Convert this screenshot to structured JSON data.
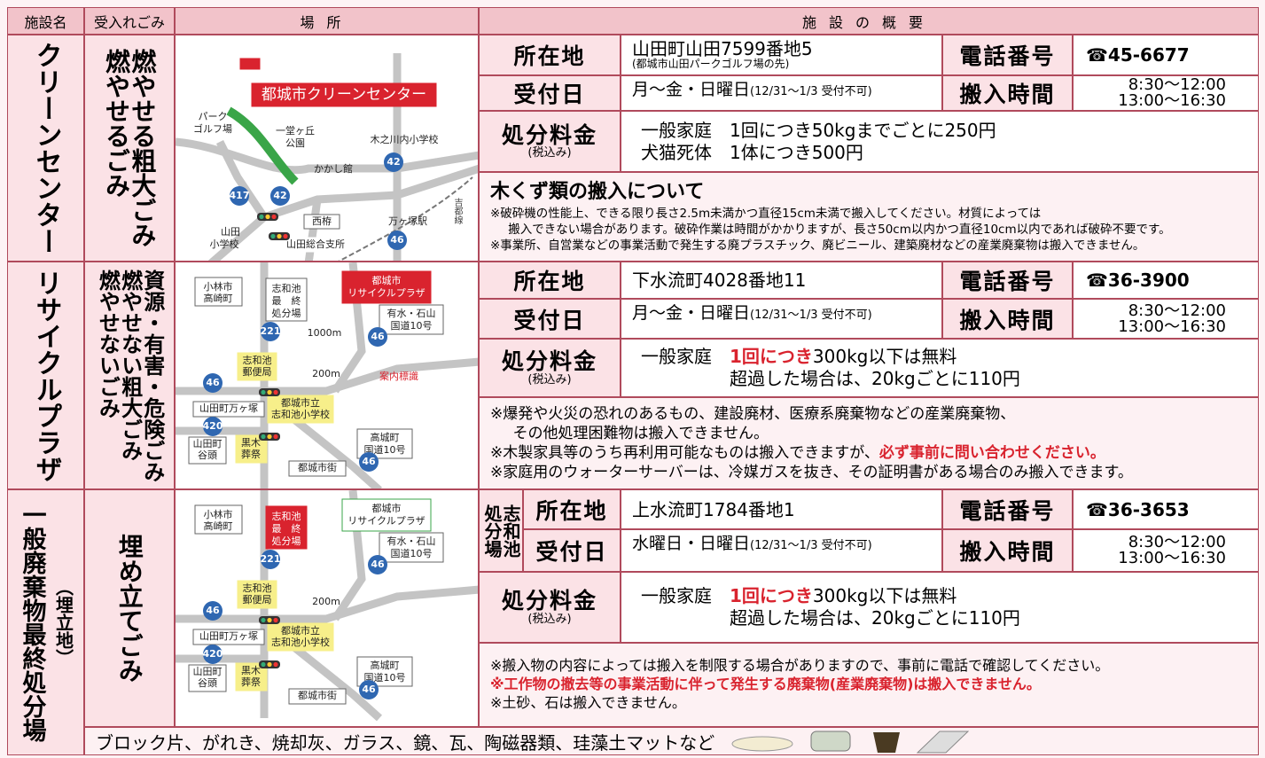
{
  "header": {
    "facility": "施設名",
    "waste": "受入れごみ",
    "location": "場所",
    "overview": "施設の概要"
  },
  "facilities": [
    {
      "name": [
        "クリーンセンター"
      ],
      "waste": [
        "燃やせる粗大ごみ",
        "燃やせるごみ"
      ],
      "map": {
        "labels": [
          "都城市クリーンセンター",
          "パーク",
          "ゴルフ場",
          "一堂ヶ丘",
          "公園",
          "木之川内小学校",
          "かかし館",
          "42",
          "417",
          "42",
          "西栫",
          "万ヶ塚駅",
          "吉都線",
          "山田",
          "小学校",
          "山田総合支所",
          "46"
        ]
      },
      "address_label": "所在地",
      "address": "山田町山田7599番地5",
      "address_note": "(都城市山田パークゴルフ場の先)",
      "phone_label": "電話番号",
      "phone": "☎45-6677",
      "reception_label": "受付日",
      "reception": "月～金・日曜日",
      "reception_note": "(12/31～1/3 受付不可)",
      "hours_label": "搬入時間",
      "hours": [
        "8:30～12:00",
        "13:00～16:30"
      ],
      "fee_label": "処分料金",
      "fee_note": "(税込み)",
      "fees": [
        [
          {
            "text": "一般家庭　1回につき50kgまでごとに250円"
          }
        ],
        [
          {
            "text": "犬猫死体　1体につき500円"
          }
        ]
      ],
      "notes_title": "木くず類の搬入について",
      "notes": [
        [
          {
            "text": "※破砕機の性能上、できる限り長さ2.5m未満かつ直径15cm未満で搬入してください。材質によっては"
          }
        ],
        [
          {
            "text": "搬入できない場合があります。破砕作業は時間がかかりますが、長さ50cm以内かつ直径10cm以内であれば破砕不要です。"
          }
        ],
        [
          {
            "text": "※事業所、自営業などの事業活動で発生する廃プラスチック、廃ビニール、建築廃材などの産業廃棄物は搬入できません。"
          }
        ]
      ]
    },
    {
      "name": [
        "リサイクルプラザ"
      ],
      "waste": [
        "資源・有害・危険ごみ",
        "燃やせない粗大ごみ",
        "燃やせないごみ"
      ],
      "map": {
        "labels": [
          "小林市",
          "高崎町",
          "志和池",
          "最　終",
          "処分場",
          "都城市",
          "リサイクルプラザ",
          "有水・石山",
          "国道10号",
          "221",
          "1000m",
          "46",
          "志和池",
          "郵便局",
          "200m",
          "案内標識",
          "46",
          "山田町万ヶ塚",
          "都城市立",
          "志和池小学校",
          "420",
          "山田町",
          "谷頭",
          "黒木",
          "葬祭",
          "都城市街",
          "高城町",
          "国道10号",
          "46"
        ]
      },
      "address_label": "所在地",
      "address": "下水流町4028番地11",
      "phone_label": "電話番号",
      "phone": "☎36-3900",
      "reception_label": "受付日",
      "reception": "月～金・日曜日",
      "reception_note": "(12/31～1/3 受付不可)",
      "hours_label": "搬入時間",
      "hours": [
        "8:30～12:00",
        "13:00～16:30"
      ],
      "fee_label": "処分料金",
      "fee_note": "(税込み)",
      "fees": [
        [
          {
            "text": "一般家庭　"
          },
          {
            "text": "1回につき",
            "highlight": true
          },
          {
            "text": "300kg以下は無料"
          }
        ],
        [
          {
            "text": "超過した場合は、20kgごとに110円"
          }
        ]
      ],
      "notes": [
        [
          {
            "text": "※爆発や火災の恐れのあるもの、建設廃材、医療系廃棄物などの産業廃棄物、"
          }
        ],
        [
          {
            "text": "その他処理困難物は搬入できません。"
          }
        ],
        [
          {
            "text": "※木製家具等のうち再利用可能なものは搬入できますが、"
          },
          {
            "text": "必ず事前に問い合わせください。",
            "highlight": true
          }
        ],
        [
          {
            "text": "※家庭用のウォーターサーバーは、冷媒ガスを抜き、その証明書がある場合のみ搬入できます。"
          }
        ]
      ]
    },
    {
      "name": [
        "一般廃棄物最終処分場",
        "（埋立地）"
      ],
      "waste": [
        "埋め立てごみ"
      ],
      "site": [
        "志和池",
        "処分場"
      ],
      "map": {
        "labels": [
          "小林市",
          "高崎町",
          "志和池",
          "最　終",
          "処分場",
          "都城市",
          "リサイクルプラザ",
          "有水・石山",
          "国道10号",
          "221",
          "46",
          "志和池",
          "郵便局",
          "200m",
          "46",
          "山田町万ヶ塚",
          "都城市立",
          "志和池小学校",
          "420",
          "山田町",
          "谷頭",
          "黒木",
          "葬祭",
          "都城市街",
          "高城町",
          "国道10号",
          "46"
        ]
      },
      "address_label": "所在地",
      "address": "上水流町1784番地1",
      "phone_label": "電話番号",
      "phone": "☎36-3653",
      "reception_label": "受付日",
      "reception": "水曜日・日曜日",
      "reception_note": "(12/31～1/3 受付不可)",
      "hours_label": "搬入時間",
      "hours": [
        "8:30～12:00",
        "13:00～16:30"
      ],
      "fee_label": "処分料金",
      "fee_note": "(税込み)",
      "fees": [
        [
          {
            "text": "一般家庭　"
          },
          {
            "text": "1回につき",
            "highlight": true
          },
          {
            "text": "300kg以下は無料"
          }
        ],
        [
          {
            "text": "超過した場合は、20kgごとに110円"
          }
        ]
      ],
      "notes": [
        [
          {
            "text": "※搬入物の内容によっては搬入を制限する場合がありますので、事前に電話で確認してください。"
          }
        ],
        [
          {
            "text": "※工作物の撤去等の事業活動に伴って発生する廃棄物(産業廃棄物)は搬入できません。",
            "highlight": true
          }
        ],
        [
          {
            "text": "※土砂、石は搬入できません。"
          }
        ]
      ]
    }
  ],
  "footer": {
    "text": "ブロック片、がれき、焼却灰、ガラス、鏡、瓦、陶磁器類、珪藻土マットなど"
  }
}
